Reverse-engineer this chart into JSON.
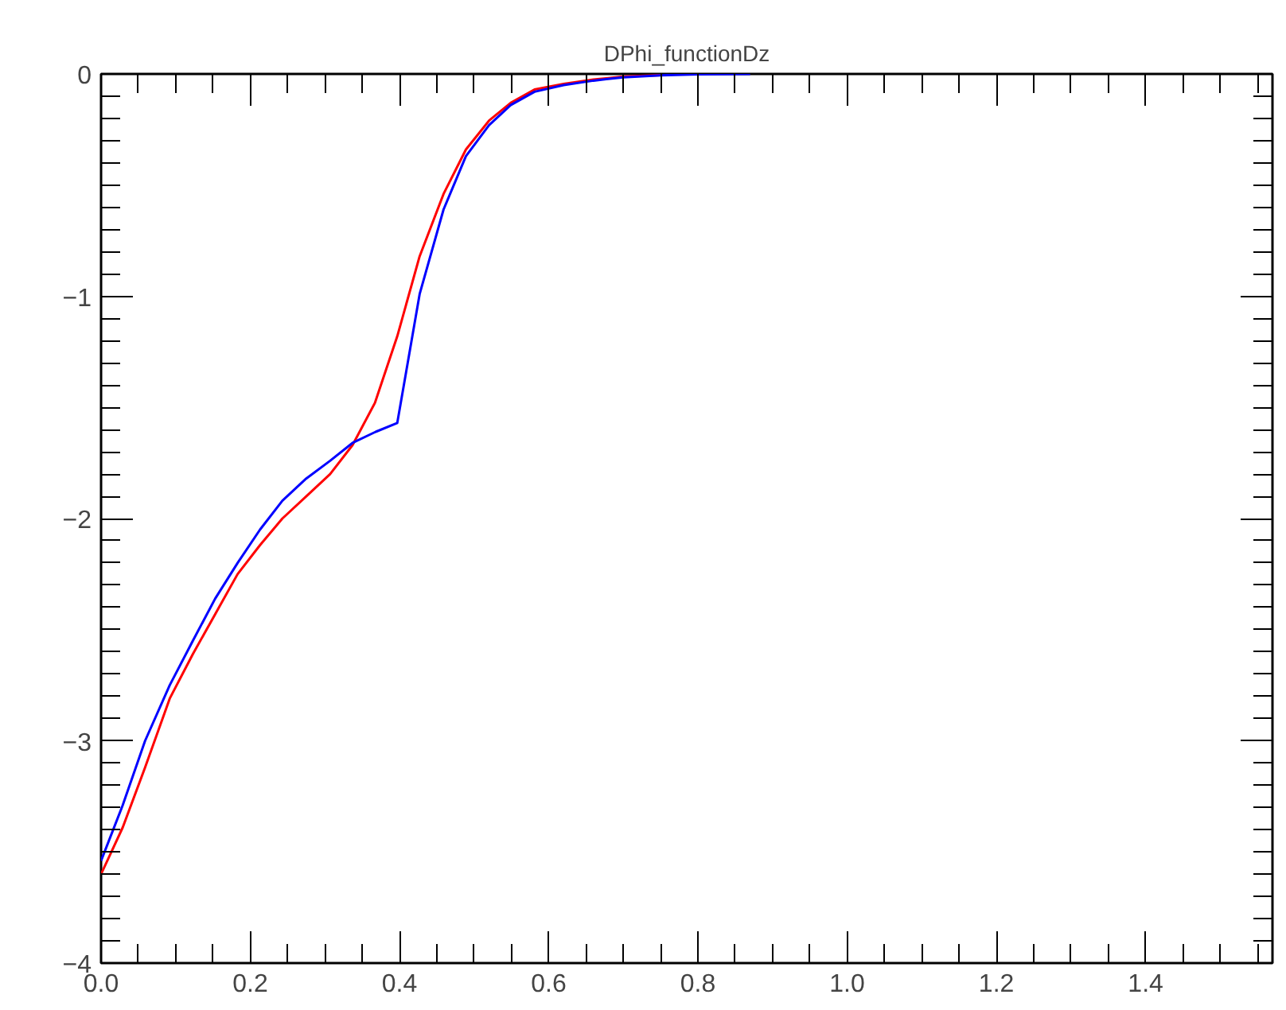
{
  "chart_data": {
    "type": "line",
    "title": "DPhi_functionDz",
    "xlim": [
      0,
      1.57
    ],
    "ylim": [
      -4,
      0
    ],
    "xticks": [
      {
        "value": 0,
        "label": "0.0"
      },
      {
        "value": 0.2,
        "label": "0.2"
      },
      {
        "value": 0.4,
        "label": "0.4"
      },
      {
        "value": 0.6,
        "label": "0.6"
      },
      {
        "value": 0.8,
        "label": "0.8"
      },
      {
        "value": 1.0,
        "label": "1.0"
      },
      {
        "value": 1.2,
        "label": "1.2"
      },
      {
        "value": 1.4,
        "label": "1.4"
      }
    ],
    "yticks": [
      -4,
      -3,
      -2,
      -1,
      0
    ],
    "grid": false,
    "line_style": "solid",
    "series": [
      {
        "color": "#ff0000",
        "x": [
          0,
          0.029,
          0.059,
          0.092,
          0.123,
          0.153,
          0.183,
          0.213,
          0.243,
          0.275,
          0.307,
          0.337,
          0.367,
          0.397,
          0.427,
          0.459,
          0.489,
          0.52,
          0.549,
          0.581,
          0.62,
          0.66,
          0.7,
          0.75
        ],
        "values": [
          -3.6,
          -3.39,
          -3.12,
          -2.81,
          -2.61,
          -2.43,
          -2.25,
          -2.12,
          -2.0,
          -1.9,
          -1.8,
          -1.67,
          -1.48,
          -1.18,
          -0.82,
          -0.54,
          -0.34,
          -0.21,
          -0.13,
          -0.07,
          -0.045,
          -0.025,
          -0.012,
          -0.005
        ]
      },
      {
        "color": "#0000ff",
        "x": [
          0,
          0.029,
          0.059,
          0.092,
          0.123,
          0.153,
          0.183,
          0.213,
          0.243,
          0.275,
          0.307,
          0.337,
          0.368,
          0.397,
          0.427,
          0.459,
          0.489,
          0.52,
          0.549,
          0.581,
          0.62,
          0.66,
          0.7,
          0.75,
          0.8,
          0.87
        ],
        "values": [
          -3.54,
          -3.29,
          -3.0,
          -2.75,
          -2.55,
          -2.36,
          -2.2,
          -2.05,
          -1.92,
          -1.82,
          -1.74,
          -1.66,
          -1.61,
          -1.57,
          -0.99,
          -0.61,
          -0.37,
          -0.23,
          -0.14,
          -0.08,
          -0.05,
          -0.03,
          -0.015,
          -0.006,
          -0.002,
          0
        ]
      }
    ]
  }
}
